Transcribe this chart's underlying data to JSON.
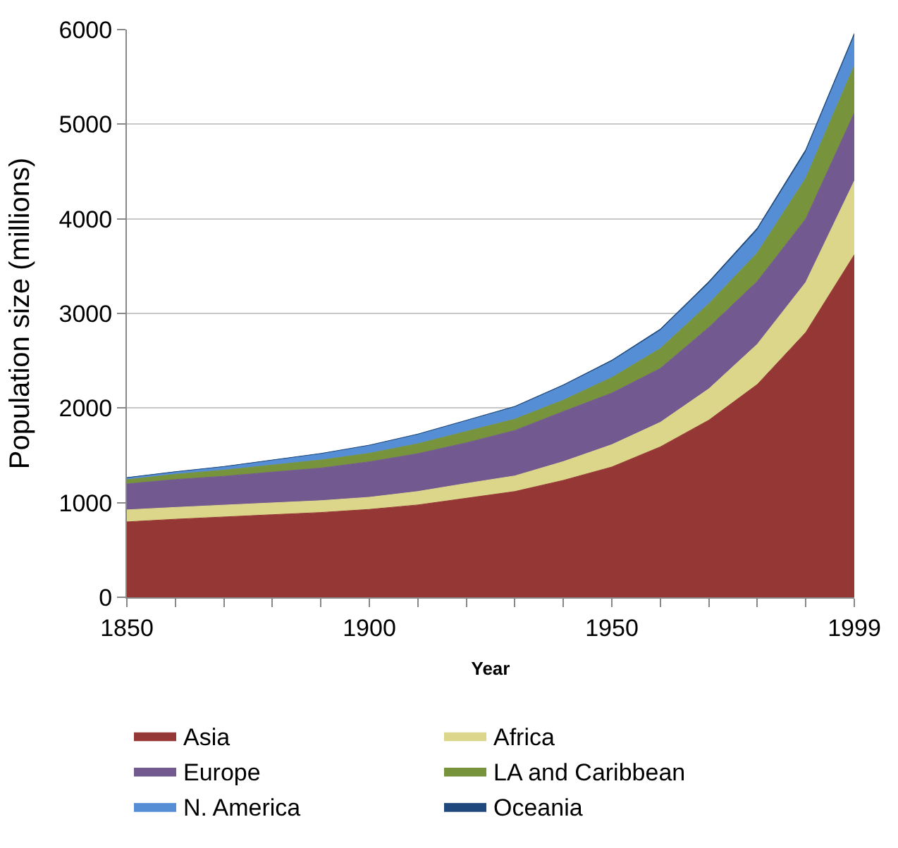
{
  "chart_data": {
    "type": "area",
    "stacked": true,
    "xlabel": "Year",
    "ylabel": "Population size (millions)",
    "categories": [
      "1850",
      null,
      null,
      null,
      null,
      "1900",
      null,
      null,
      null,
      null,
      "1950",
      null,
      null,
      null,
      null,
      "1999"
    ],
    "ylim": [
      0,
      6000
    ],
    "yticks": [
      0,
      1000,
      2000,
      3000,
      4000,
      5000,
      6000
    ],
    "grid": "y",
    "legend": "bottom",
    "series": [
      {
        "name": "Asia",
        "color": "#953735",
        "values": [
          797,
          825,
          849,
          873,
          896,
          929,
          976,
          1047,
          1118,
          1236,
          1377,
          1590,
          1872,
          2250,
          2800,
          3620
        ]
      },
      {
        "name": "Africa",
        "color": "#dbd68a",
        "values": [
          127,
          125,
          125,
          125,
          125,
          128,
          142,
          156,
          165,
          198,
          236,
          259,
          331,
          425,
          530,
          780
        ]
      },
      {
        "name": "Europe",
        "color": "#72598f",
        "values": [
          274,
          295,
          305,
          325,
          345,
          375,
          400,
          430,
          480,
          530,
          545,
          570,
          650,
          665,
          670,
          720
        ]
      },
      {
        "name": "LA and Caribbean",
        "color": "#77933c",
        "values": [
          45,
          55,
          65,
          75,
          85,
          90,
          105,
          120,
          120,
          120,
          165,
          210,
          250,
          300,
          430,
          500
        ]
      },
      {
        "name": "N. America",
        "color": "#558ed5",
        "values": [
          20,
          25,
          35,
          50,
          65,
          80,
          95,
          110,
          125,
          150,
          170,
          190,
          215,
          240,
          275,
          310
        ]
      },
      {
        "name": "Oceania",
        "color": "#1f497d",
        "values": [
          2,
          2,
          3,
          3,
          4,
          6,
          7,
          8,
          10,
          11,
          13,
          16,
          19,
          23,
          27,
          30
        ]
      }
    ]
  }
}
